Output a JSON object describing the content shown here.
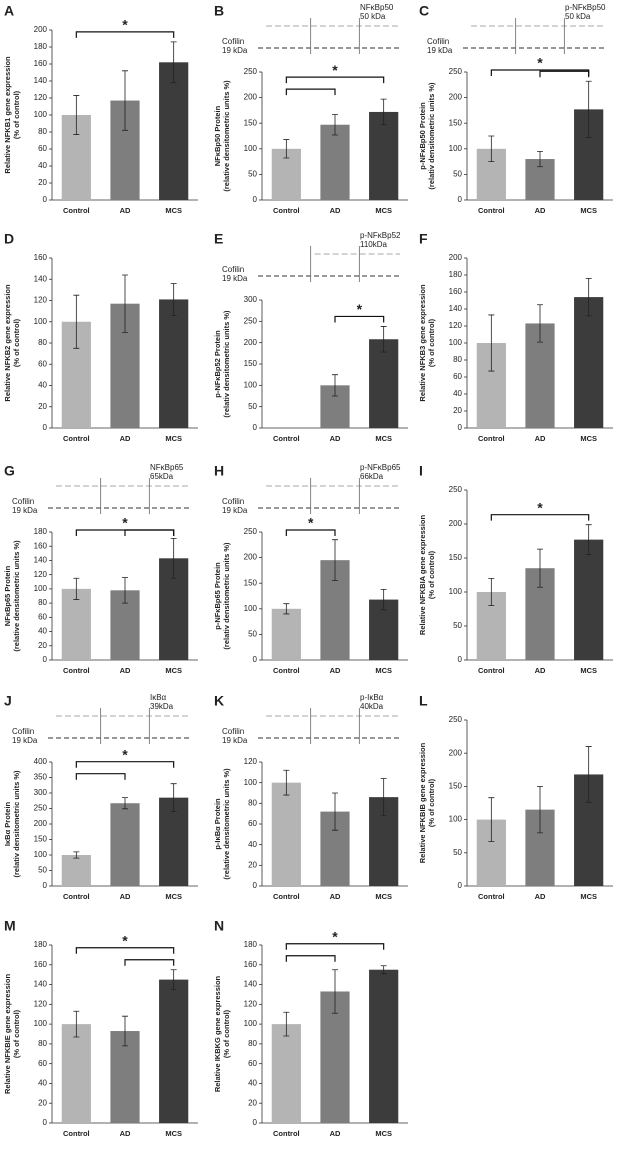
{
  "bar_colors": [
    "#b4b4b4",
    "#7e7e7e",
    "#3c3c3c"
  ],
  "chart_data": [
    {
      "type": "bar",
      "panel": "A",
      "y_label": [
        "Relative NFKB1 gene expression",
        "(% of control)"
      ],
      "categories": [
        "Control",
        "AD",
        "MCS"
      ],
      "values": [
        100,
        117,
        162
      ],
      "errors": [
        23,
        35,
        24
      ],
      "ylim": [
        0,
        200
      ],
      "yticks": [
        0,
        20,
        40,
        60,
        80,
        100,
        120,
        140,
        160,
        180,
        200
      ],
      "comparisons": [
        [
          0,
          2
        ]
      ],
      "significance": "*"
    },
    {
      "type": "bar",
      "panel": "B",
      "y_label": [
        "NFκBp50 Protein",
        "(relative densitometric units %)"
      ],
      "categories": [
        "Control",
        "AD",
        "MCS"
      ],
      "values": [
        100,
        147,
        172
      ],
      "errors": [
        18,
        20,
        25
      ],
      "ylim": [
        0,
        250
      ],
      "yticks": [
        0,
        50,
        100,
        150,
        200,
        250
      ],
      "comparisons": [
        [
          0,
          1
        ],
        [
          0,
          2
        ]
      ],
      "significance": "*",
      "blot": {
        "target": "NFκBp50",
        "target_kda": "50 kDa",
        "loading": "Cofilin",
        "loading_kda": "19 kDa"
      }
    },
    {
      "type": "bar",
      "panel": "C",
      "y_label": [
        "p-NFκBp50 Protein",
        "(relativ densitometric units %)"
      ],
      "categories": [
        "Control",
        "AD",
        "MCS"
      ],
      "values": [
        100,
        80,
        177
      ],
      "errors": [
        25,
        15,
        55
      ],
      "ylim": [
        0,
        250
      ],
      "yticks": [
        0,
        50,
        100,
        150,
        200,
        250
      ],
      "comparisons": [
        [
          1,
          2
        ],
        [
          0,
          2
        ]
      ],
      "significance": "*",
      "blot": {
        "target": "p-NFκBp50",
        "target_kda": "50 kDa",
        "loading": "Cofilin",
        "loading_kda": "19 kDa"
      }
    },
    {
      "type": "bar",
      "panel": "D",
      "y_label": [
        "Relative NFKB2 gene expression",
        "(% of control)"
      ],
      "categories": [
        "Control",
        "AD",
        "MCS"
      ],
      "values": [
        100,
        117,
        121
      ],
      "errors": [
        25,
        27,
        15
      ],
      "ylim": [
        0,
        160
      ],
      "yticks": [
        0,
        20,
        40,
        60,
        80,
        100,
        120,
        140,
        160
      ],
      "comparisons": []
    },
    {
      "type": "bar",
      "panel": "E",
      "y_label": [
        "p-NFκBp52 Protein",
        "(relativ densitometric units %)"
      ],
      "categories": [
        "Control",
        "AD",
        "MCS"
      ],
      "values": [
        null,
        100,
        208
      ],
      "errors": [
        null,
        25,
        30
      ],
      "ylim": [
        0,
        300
      ],
      "yticks": [
        0,
        50,
        100,
        150,
        200,
        250,
        300
      ],
      "comparisons": [
        [
          1,
          2
        ]
      ],
      "significance": "*",
      "blot": {
        "target": "p-NFκBp52",
        "target_kda": "110kDa",
        "loading": "Cofilin",
        "loading_kda": "19 kDa"
      }
    },
    {
      "type": "bar",
      "panel": "F",
      "y_label": [
        "Relative NFKB3 gene expression",
        "(% of control)"
      ],
      "categories": [
        "Control",
        "AD",
        "MCS"
      ],
      "values": [
        100,
        123,
        154
      ],
      "errors": [
        33,
        22,
        22
      ],
      "ylim": [
        0,
        200
      ],
      "yticks": [
        0,
        20,
        40,
        60,
        80,
        100,
        120,
        140,
        160,
        180,
        200
      ],
      "comparisons": []
    },
    {
      "type": "bar",
      "panel": "G",
      "y_label": [
        "NFκBp65 Protein",
        "(relative densitometric units %)"
      ],
      "categories": [
        "Control",
        "AD",
        "MCS"
      ],
      "values": [
        100,
        98,
        143
      ],
      "errors": [
        15,
        18,
        28
      ],
      "ylim": [
        0,
        180
      ],
      "yticks": [
        0,
        20,
        40,
        60,
        80,
        100,
        120,
        140,
        160,
        180
      ],
      "comparisons": [
        [
          1,
          2
        ],
        [
          0,
          2
        ]
      ],
      "significance": "*",
      "blot": {
        "target": "NFκBp65",
        "target_kda": "65kDa",
        "loading": "Cofilin",
        "loading_kda": "19 kDa"
      }
    },
    {
      "type": "bar",
      "panel": "H",
      "y_label": [
        "p-NFκBp65 Protein",
        "(relativ densitometric units %)"
      ],
      "categories": [
        "Control",
        "AD",
        "MCS"
      ],
      "values": [
        100,
        195,
        118
      ],
      "errors": [
        10,
        40,
        20
      ],
      "ylim": [
        0,
        250
      ],
      "yticks": [
        0,
        50,
        100,
        150,
        200,
        250
      ],
      "comparisons": [
        [
          0,
          1
        ]
      ],
      "significance": "*",
      "blot": {
        "target": "p-NFκBp65",
        "target_kda": "66kDa",
        "loading": "Cofilin",
        "loading_kda": "19 kDa"
      }
    },
    {
      "type": "bar",
      "panel": "I",
      "y_label": [
        "Relative NFKBIA gene expression",
        "(% of control)"
      ],
      "categories": [
        "Control",
        "AD",
        "MCS"
      ],
      "values": [
        100,
        135,
        177
      ],
      "errors": [
        20,
        28,
        22
      ],
      "ylim": [
        0,
        250
      ],
      "yticks": [
        0,
        50,
        100,
        150,
        200,
        250
      ],
      "comparisons": [
        [
          0,
          2
        ]
      ],
      "significance": "*"
    },
    {
      "type": "bar",
      "panel": "J",
      "y_label": [
        "IκBα Protein",
        "(relativ densitometric units %)"
      ],
      "categories": [
        "Control",
        "AD",
        "MCS"
      ],
      "values": [
        100,
        267,
        285
      ],
      "errors": [
        10,
        18,
        45
      ],
      "ylim": [
        0,
        400
      ],
      "yticks": [
        0,
        50,
        100,
        150,
        200,
        250,
        300,
        350,
        400
      ],
      "comparisons": [
        [
          0,
          1
        ],
        [
          0,
          2
        ]
      ],
      "significance": "*",
      "blot": {
        "target": "IκBα",
        "target_kda": "39kDa",
        "loading": "Cofilin",
        "loading_kda": "19 kDa"
      }
    },
    {
      "type": "bar",
      "panel": "K",
      "y_label": [
        "p-IκBα Protein",
        "(relative densitometric units %)"
      ],
      "categories": [
        "Control",
        "AD",
        "MCS"
      ],
      "values": [
        100,
        72,
        86
      ],
      "errors": [
        12,
        18,
        18
      ],
      "ylim": [
        0,
        120
      ],
      "yticks": [
        0,
        20,
        40,
        60,
        80,
        100,
        120
      ],
      "comparisons": [],
      "blot": {
        "target": "p-IκBα",
        "target_kda": "40kDa",
        "loading": "Cofilin",
        "loading_kda": "19 kDa"
      }
    },
    {
      "type": "bar",
      "panel": "L",
      "y_label": [
        "Relative NFKBIB gene expression",
        "(% of control)"
      ],
      "categories": [
        "Control",
        "AD",
        "MCS"
      ],
      "values": [
        100,
        115,
        168
      ],
      "errors": [
        33,
        35,
        42
      ],
      "ylim": [
        0,
        250
      ],
      "yticks": [
        0,
        50,
        100,
        150,
        200,
        250
      ],
      "comparisons": []
    },
    {
      "type": "bar",
      "panel": "M",
      "y_label": [
        "Relative NFKBIE gene expression",
        "(% of control)"
      ],
      "categories": [
        "Control",
        "AD",
        "MCS"
      ],
      "values": [
        100,
        93,
        145
      ],
      "errors": [
        13,
        15,
        10
      ],
      "ylim": [
        0,
        180
      ],
      "yticks": [
        0,
        20,
        40,
        60,
        80,
        100,
        120,
        140,
        160,
        180
      ],
      "comparisons": [
        [
          1,
          2
        ],
        [
          0,
          2
        ]
      ],
      "significance": "*"
    },
    {
      "type": "bar",
      "panel": "N",
      "y_label": [
        "Relative IKBKG gene expression",
        "(% of control)"
      ],
      "categories": [
        "Control",
        "AD",
        "MCS"
      ],
      "values": [
        100,
        133,
        155
      ],
      "errors": [
        12,
        22,
        4
      ],
      "ylim": [
        0,
        180
      ],
      "yticks": [
        0,
        20,
        40,
        60,
        80,
        100,
        120,
        140,
        160,
        180
      ],
      "comparisons": [
        [
          0,
          1
        ],
        [
          0,
          2
        ]
      ],
      "significance": "*"
    }
  ]
}
